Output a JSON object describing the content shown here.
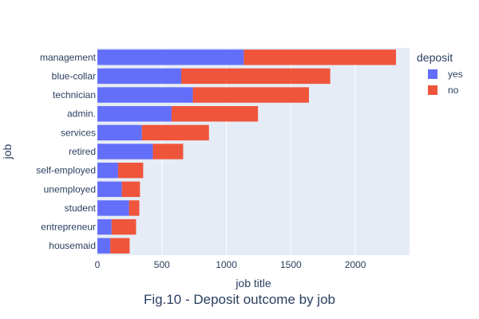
{
  "chart_data": {
    "type": "bar",
    "orientation": "horizontal",
    "barmode": "stack",
    "title": "Fig.10 - Deposit outcome by job",
    "xlabel": "job title",
    "ylabel": "job",
    "xlim": [
      0,
      2420
    ],
    "xticks": [
      0,
      500,
      1000,
      1500,
      2000
    ],
    "grid": true,
    "legend_title": "deposit",
    "legend_position": "right",
    "categories": [
      "management",
      "blue-collar",
      "technician",
      "admin.",
      "services",
      "retired",
      "self-employed",
      "unemployed",
      "student",
      "entrepreneur",
      "housemaid"
    ],
    "series": [
      {
        "name": "yes",
        "color": "#636efa",
        "values": [
          1135,
          650,
          740,
          575,
          345,
          430,
          160,
          190,
          245,
          110,
          100
        ]
      },
      {
        "name": "no",
        "color": "#ef553b",
        "values": [
          1180,
          1155,
          900,
          670,
          520,
          235,
          195,
          140,
          80,
          190,
          150
        ]
      }
    ]
  }
}
